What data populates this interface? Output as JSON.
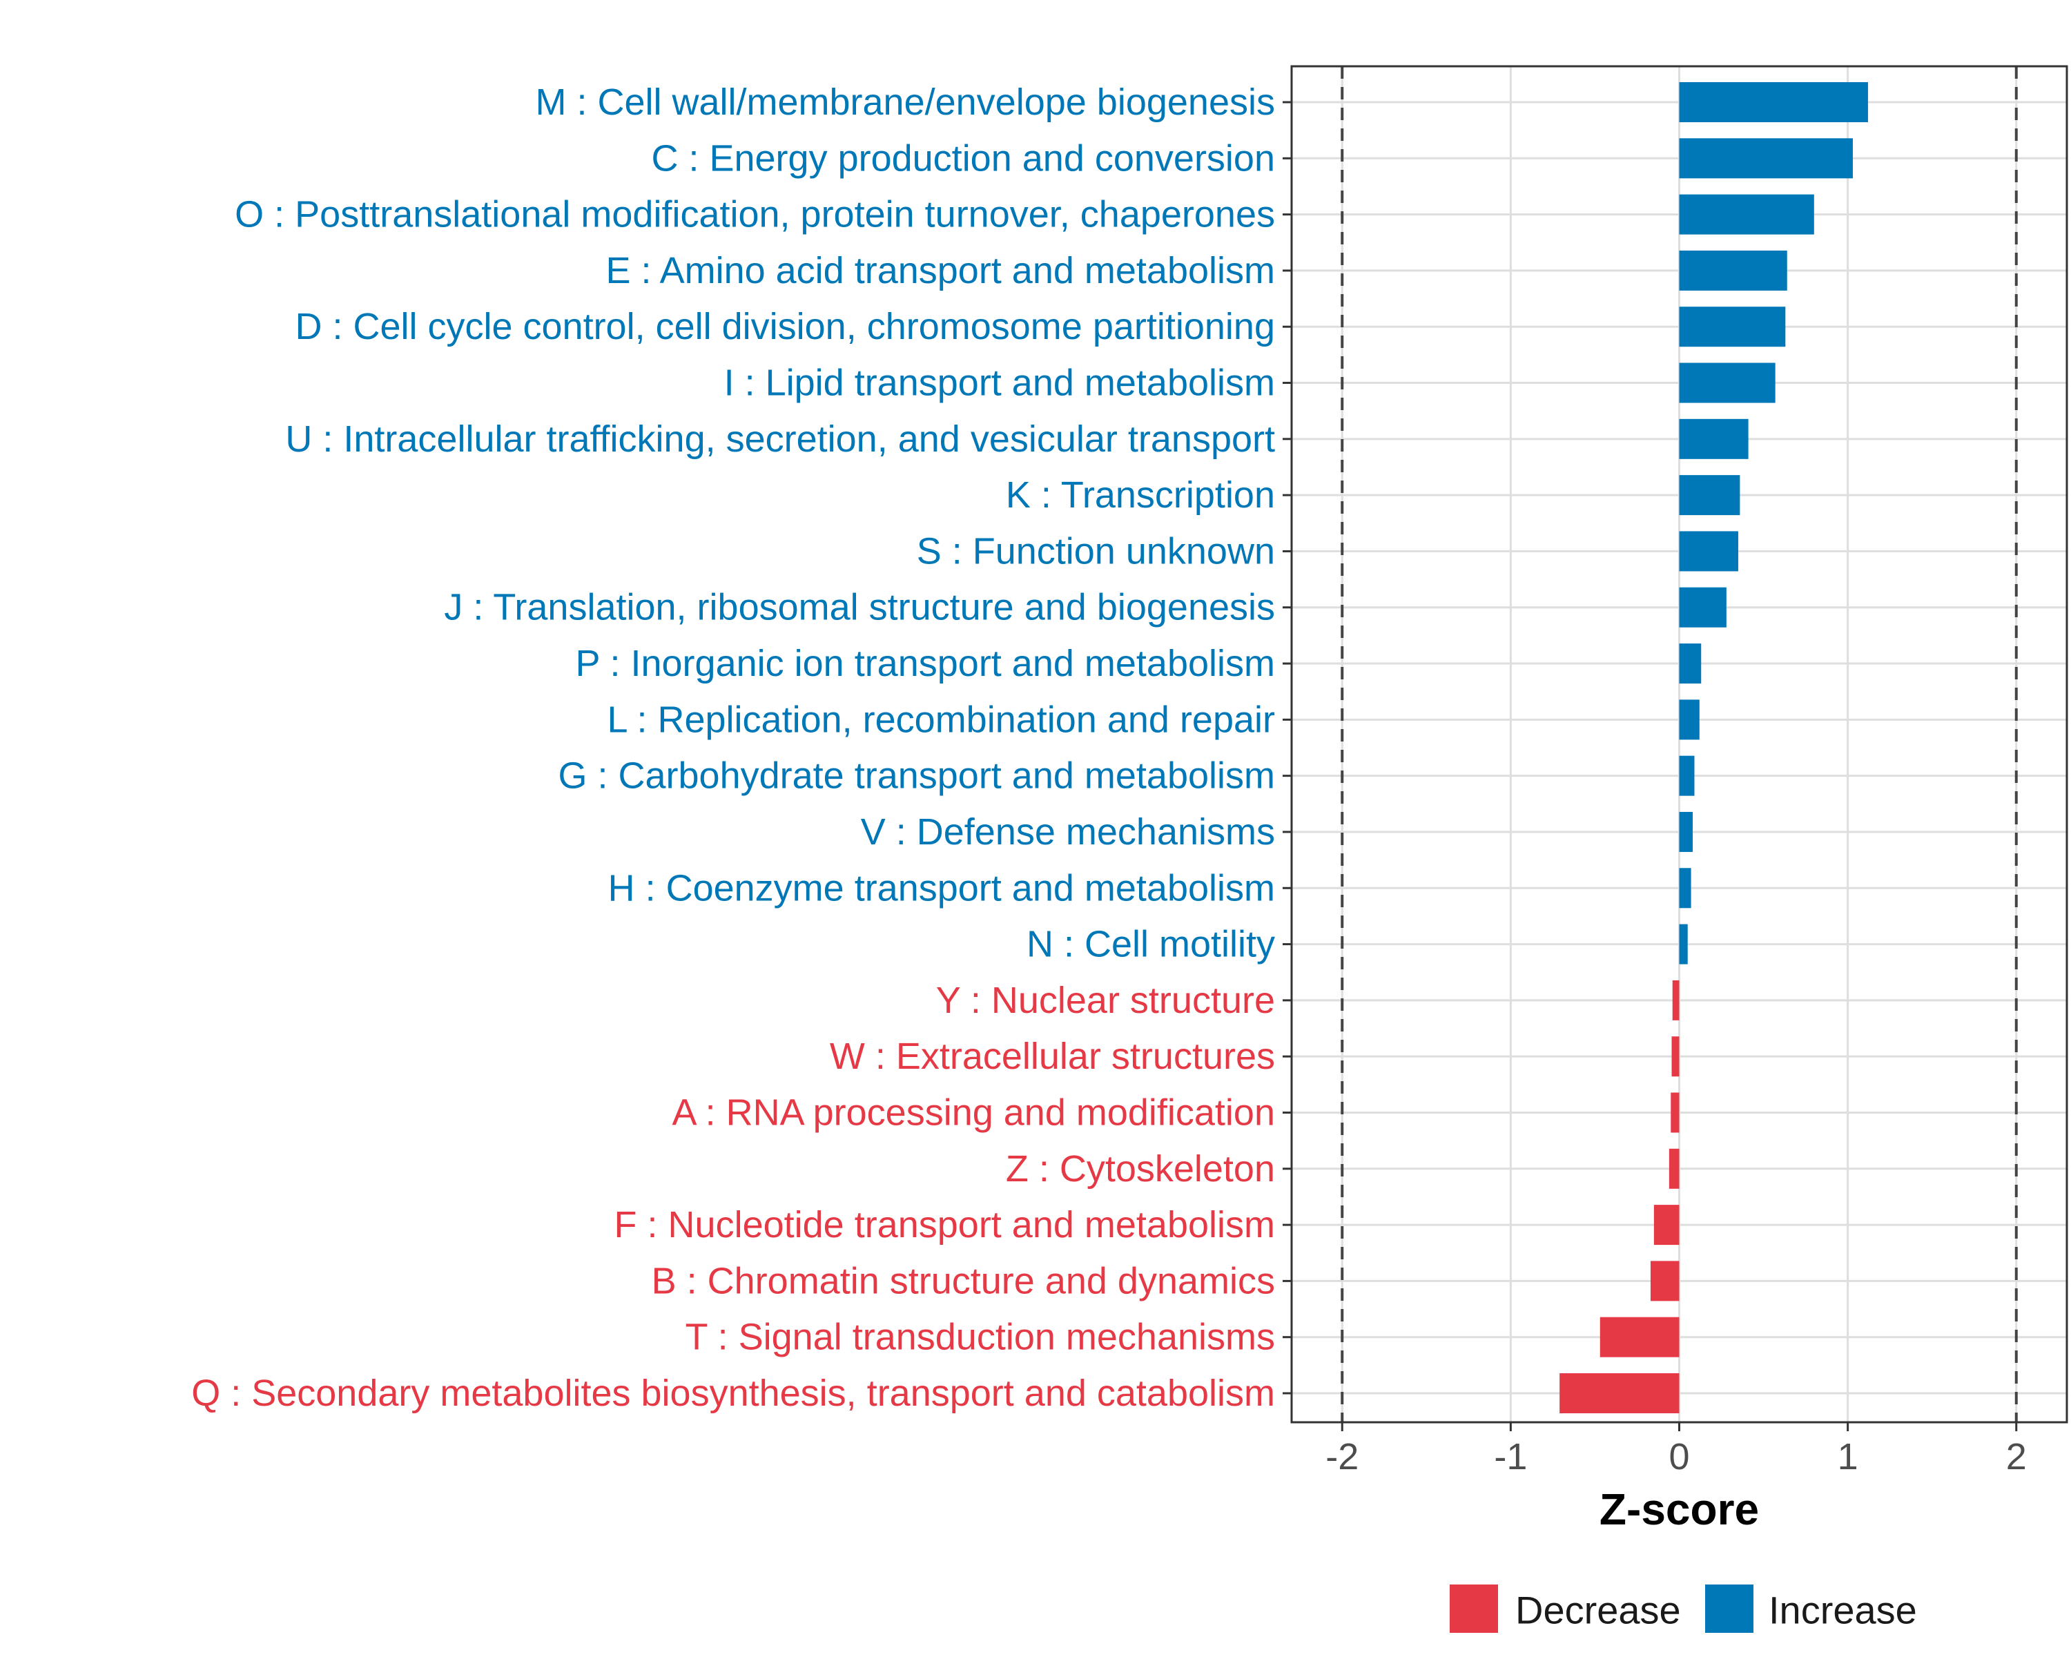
{
  "chart_data": {
    "type": "bar",
    "orientation": "horizontal",
    "xlabel": "Z-score",
    "xlim": [
      -2.3,
      2.3
    ],
    "xticks": [
      -2,
      -1,
      0,
      1,
      2
    ],
    "xtick_labels": [
      "-2",
      "-1",
      "0",
      "1",
      "2"
    ],
    "reference_lines": [
      -2,
      2
    ],
    "grid": true,
    "legend_position": "bottom",
    "legend": [
      {
        "name": "Decrease",
        "color": "#E63946"
      },
      {
        "name": "Increase",
        "color": "#0077B6"
      }
    ],
    "categories": [
      "M : Cell wall/membrane/envelope biogenesis",
      "C : Energy production and conversion",
      "O : Posttranslational modification, protein turnover, chaperones",
      "E : Amino acid transport and metabolism",
      "D : Cell cycle control, cell division, chromosome partitioning",
      "I : Lipid transport and metabolism",
      "U : Intracellular trafficking, secretion, and vesicular transport",
      "K : Transcription",
      "S : Function unknown",
      "J : Translation, ribosomal structure and biogenesis",
      "P : Inorganic ion transport and metabolism",
      "L : Replication, recombination and repair",
      "G : Carbohydrate transport and metabolism",
      "V : Defense mechanisms",
      "H : Coenzyme transport and metabolism",
      "N : Cell motility",
      "Y : Nuclear structure",
      "W : Extracellular structures",
      "A : RNA processing and modification",
      "Z : Cytoskeleton",
      "F : Nucleotide transport and metabolism",
      "B : Chromatin structure and dynamics",
      "T : Signal transduction mechanisms",
      "Q : Secondary metabolites biosynthesis, transport and catabolism"
    ],
    "values": [
      1.12,
      1.03,
      0.8,
      0.64,
      0.63,
      0.57,
      0.41,
      0.36,
      0.35,
      0.28,
      0.13,
      0.12,
      0.09,
      0.08,
      0.07,
      0.05,
      -0.04,
      -0.045,
      -0.05,
      -0.06,
      -0.15,
      -0.17,
      -0.47,
      -0.71
    ],
    "groups": [
      "Increase",
      "Increase",
      "Increase",
      "Increase",
      "Increase",
      "Increase",
      "Increase",
      "Increase",
      "Increase",
      "Increase",
      "Increase",
      "Increase",
      "Increase",
      "Increase",
      "Increase",
      "Increase",
      "Decrease",
      "Decrease",
      "Decrease",
      "Decrease",
      "Decrease",
      "Decrease",
      "Decrease",
      "Decrease"
    ]
  }
}
